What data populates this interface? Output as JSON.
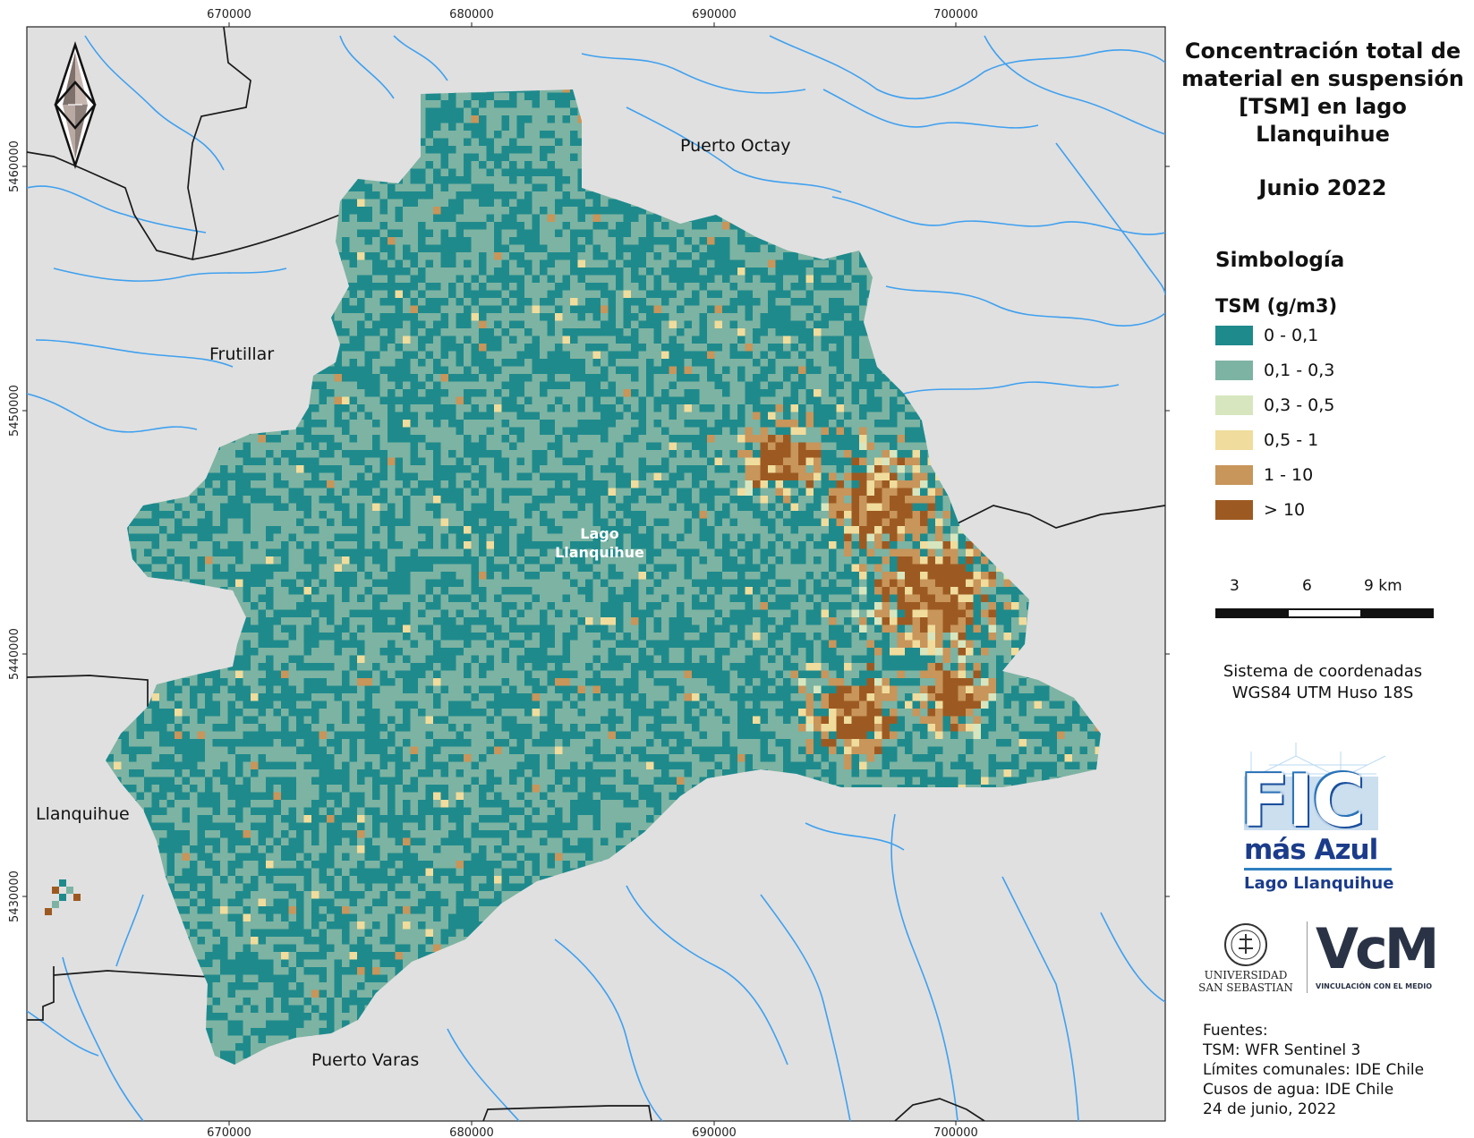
{
  "map": {
    "x_ticks": [
      "670000",
      "680000",
      "690000",
      "700000"
    ],
    "y_ticks": [
      "5460000",
      "5450000",
      "5440000",
      "5430000"
    ],
    "places": {
      "puerto_octay": "Puerto Octay",
      "frutillar": "Frutillar",
      "llanquihue": "Llanquihue",
      "puerto_varas": "Puerto Varas",
      "lake_line1": "Lago",
      "lake_line2": "Llanquihue"
    },
    "colors": {
      "land": "#e0e0e0",
      "river": "#3fa0ef",
      "boundary": "#1a1a1a"
    }
  },
  "panel": {
    "title_lines": [
      "Concentración total de",
      "material en suspensión",
      "[TSM] en lago",
      "Llanquihue"
    ],
    "date": "Junio 2022",
    "legend_heading": "Simbología",
    "legend_subheading": "TSM (g/m3)",
    "legend": [
      {
        "label": "0 - 0,1",
        "color": "#1f8a8c"
      },
      {
        "label": "0,1 - 0,3",
        "color": "#7db3a2"
      },
      {
        "label": "0,3 - 0,5",
        "color": "#d7e6bf"
      },
      {
        "label": "0,5 - 1",
        "color": "#f0dc9c"
      },
      {
        "label": "1 - 10",
        "color": "#c8955a"
      },
      {
        "label": "> 10",
        "color": "#9c5a22"
      }
    ],
    "scale_labels": [
      "3",
      "6",
      "9 km"
    ],
    "crs_lines": [
      "Sistema de coordenadas",
      "WGS84 UTM Huso 18S"
    ],
    "logo1": {
      "line1": "FIC",
      "line2": "más Azul",
      "line3": "Lago Llanquihue"
    },
    "logo2": {
      "line1": "UNIVERSIDAD",
      "line2": "SAN SEBASTIAN"
    },
    "logo3": {
      "mark": "VcM",
      "caption": "VINCULACIÓN CON EL MEDIO"
    },
    "sources": [
      "Fuentes:",
      "TSM: WFR Sentinel 3",
      "Límites comunales: IDE Chile",
      "Cusos de agua: IDE Chile",
      "24 de junio, 2022"
    ]
  }
}
